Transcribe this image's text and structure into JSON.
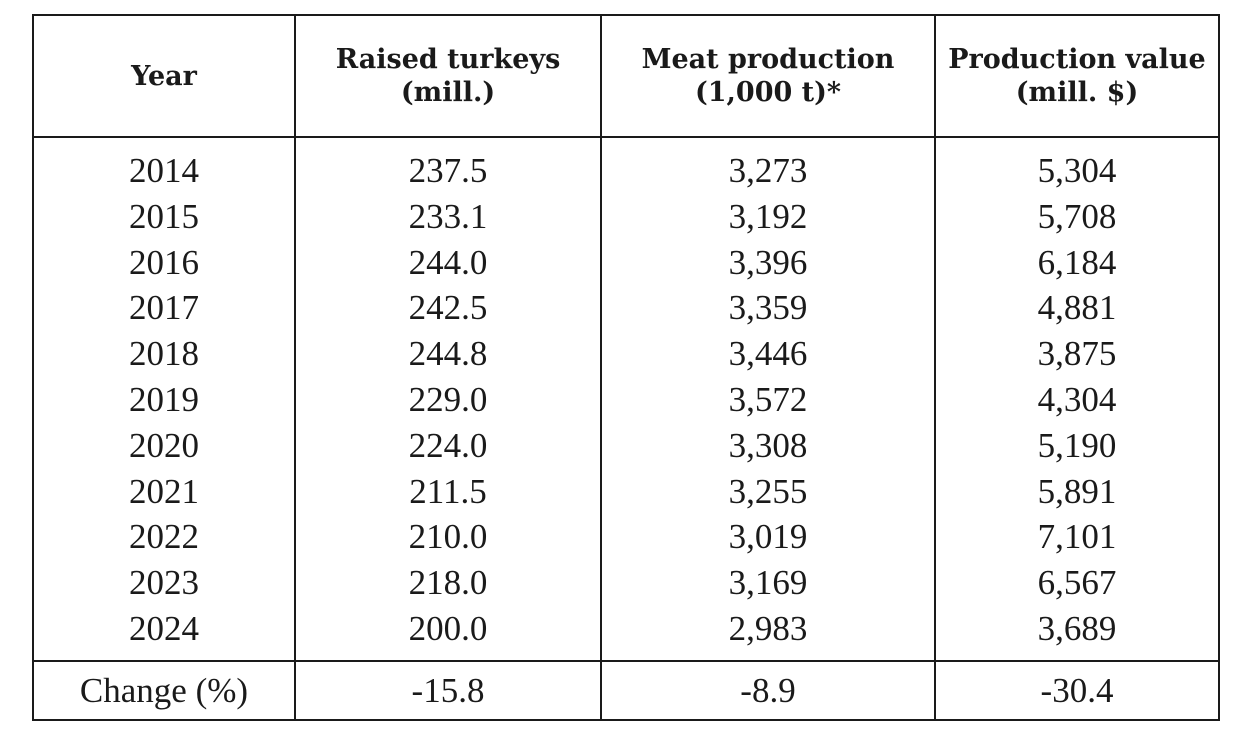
{
  "table": {
    "headers": {
      "year": "Year",
      "turkeys_line1": "Raised turkeys",
      "turkeys_line2": "(mill.)",
      "meat_line1": "Meat production",
      "meat_line2": "(1,000 t)*",
      "value_line1": "Production value",
      "value_line2": "(mill. $)"
    },
    "rows": [
      {
        "year": "2014",
        "turkeys": "237.5",
        "meat": "3,273",
        "value": "5,304"
      },
      {
        "year": "2015",
        "turkeys": "233.1",
        "meat": "3,192",
        "value": "5,708"
      },
      {
        "year": "2016",
        "turkeys": "244.0",
        "meat": "3,396",
        "value": "6,184"
      },
      {
        "year": "2017",
        "turkeys": "242.5",
        "meat": "3,359",
        "value": "4,881"
      },
      {
        "year": "2018",
        "turkeys": "244.8",
        "meat": "3,446",
        "value": "3,875"
      },
      {
        "year": "2019",
        "turkeys": "229.0",
        "meat": "3,572",
        "value": "4,304"
      },
      {
        "year": "2020",
        "turkeys": "224.0",
        "meat": "3,308",
        "value": "5,190"
      },
      {
        "year": "2021",
        "turkeys": "211.5",
        "meat": "3,255",
        "value": "5,891"
      },
      {
        "year": "2022",
        "turkeys": "210.0",
        "meat": "3,019",
        "value": "7,101"
      },
      {
        "year": "2023",
        "turkeys": "218.0",
        "meat": "3,169",
        "value": "6,567"
      },
      {
        "year": "2024",
        "turkeys": "200.0",
        "meat": "2,983",
        "value": "3,689"
      }
    ],
    "footer": {
      "label": "Change (%)",
      "turkeys": "-15.8",
      "meat": "-8.9",
      "value": "-30.4"
    }
  }
}
